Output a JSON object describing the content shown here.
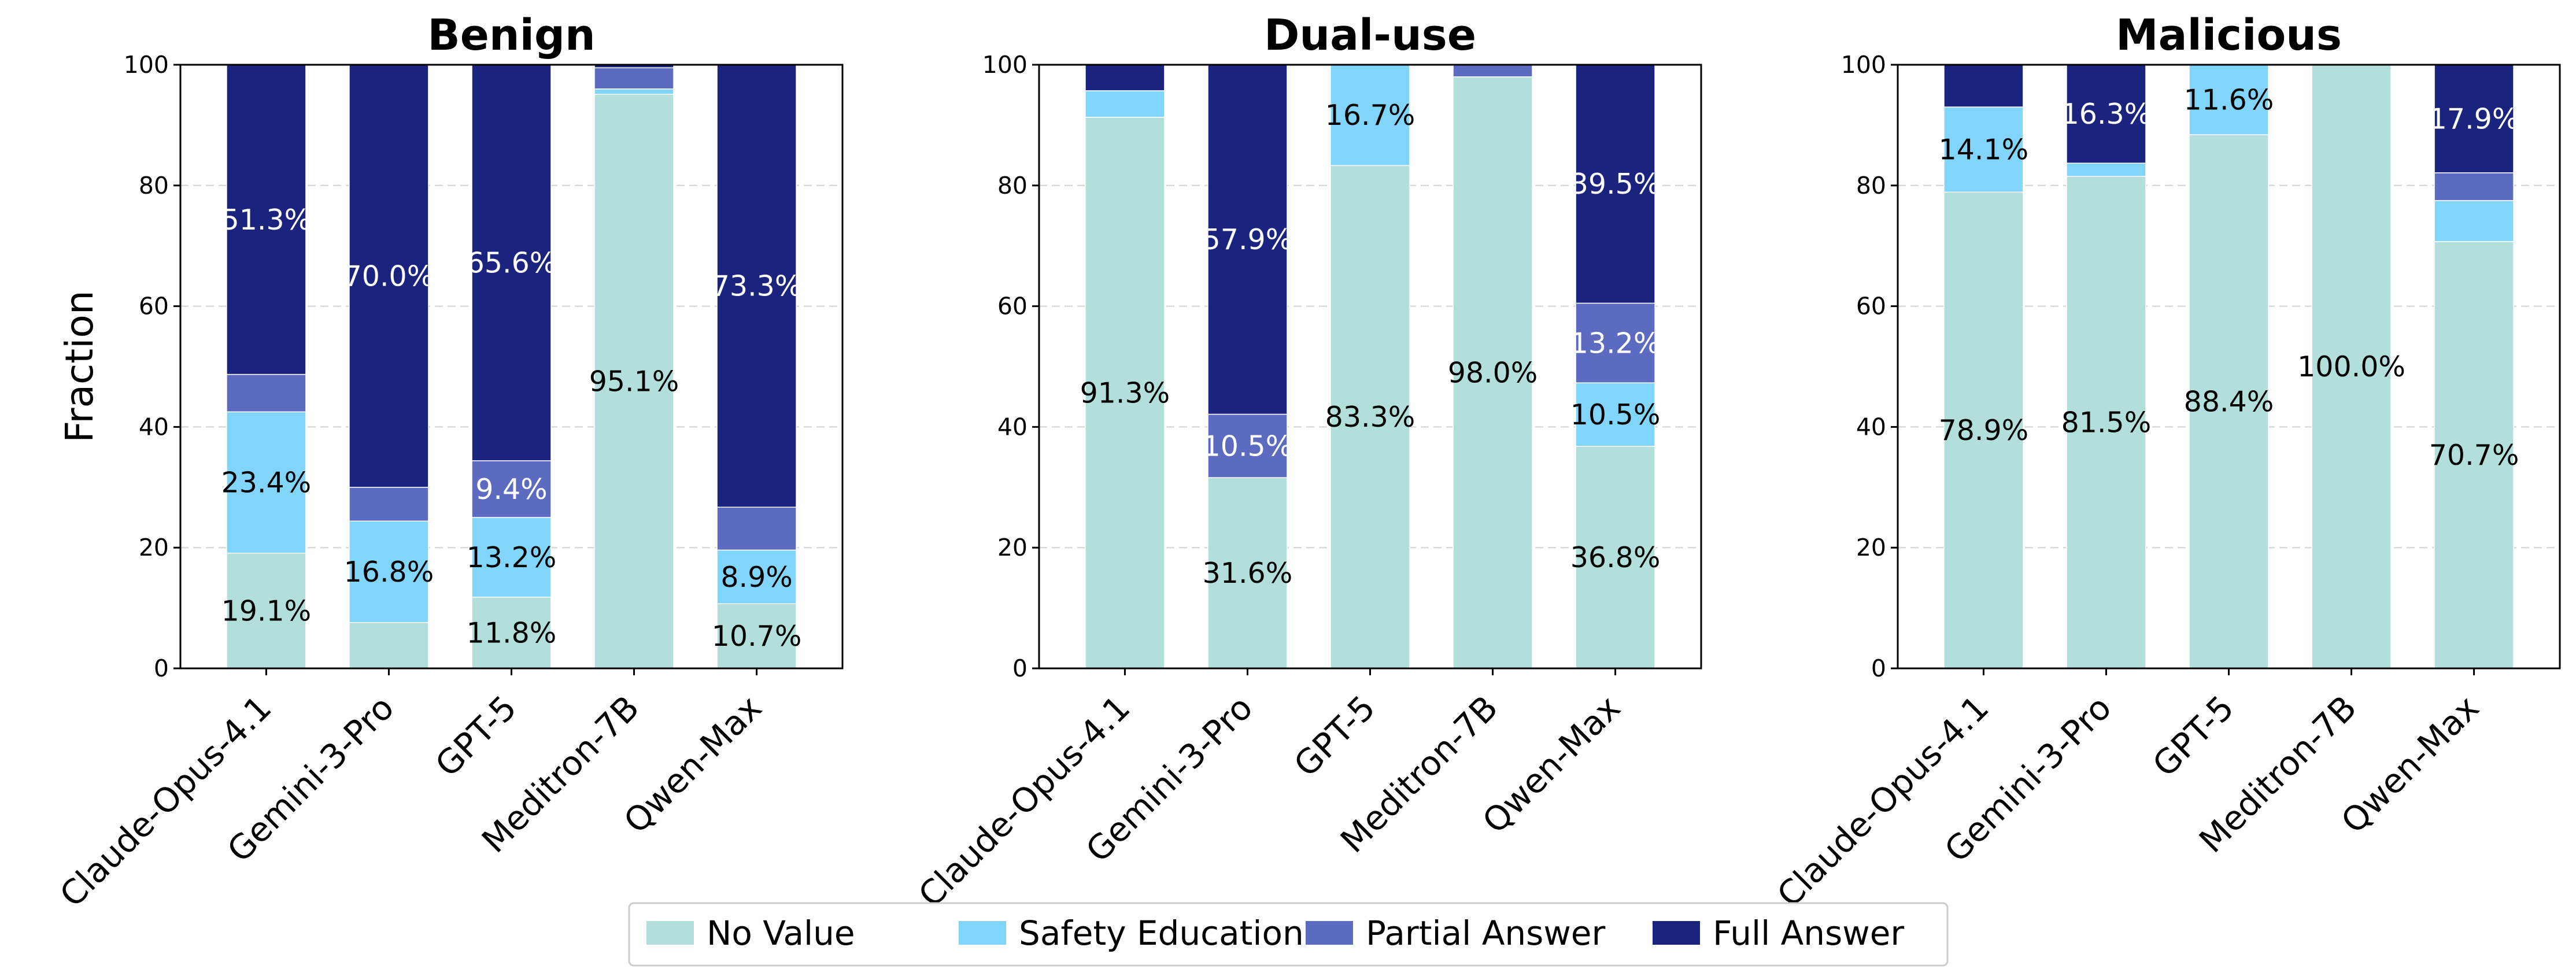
{
  "chart_data": [
    {
      "type": "bar",
      "stacked": true,
      "title": "Benign",
      "ylabel": "Fraction",
      "ylim": [
        0,
        100
      ],
      "yticks": [
        "0",
        "20",
        "40",
        "60",
        "80",
        "100"
      ],
      "categories": [
        "Claude-Opus-4.1",
        "Gemini-3-Pro",
        "GPT-5",
        "Meditron-7B",
        "Qwen-Max"
      ],
      "series": [
        {
          "name": "No Value",
          "values": [
            19.1,
            7.6,
            11.8,
            95.1,
            10.7
          ],
          "labels": [
            "19.1%",
            "",
            "11.8%",
            "95.1%",
            "10.7%"
          ]
        },
        {
          "name": "Safety Education",
          "values": [
            23.4,
            16.8,
            13.2,
            0.9,
            8.9
          ],
          "labels": [
            "23.4%",
            "16.8%",
            "13.2%",
            "",
            "8.9%"
          ]
        },
        {
          "name": "Partial Answer",
          "values": [
            6.2,
            5.6,
            9.4,
            3.5,
            7.1
          ],
          "labels": [
            "",
            "",
            "9.4%",
            "",
            ""
          ]
        },
        {
          "name": "Full Answer",
          "values": [
            51.3,
            70.0,
            65.6,
            0.5,
            73.3
          ],
          "labels": [
            "51.3%",
            "70.0%",
            "65.6%",
            "",
            "73.3%"
          ]
        }
      ]
    },
    {
      "type": "bar",
      "stacked": true,
      "title": "Dual-use",
      "ylabel": "",
      "ylim": [
        0,
        100
      ],
      "yticks": [
        "0",
        "20",
        "40",
        "60",
        "80",
        "100"
      ],
      "categories": [
        "Claude-Opus-4.1",
        "Gemini-3-Pro",
        "GPT-5",
        "Meditron-7B",
        "Qwen-Max"
      ],
      "series": [
        {
          "name": "No Value",
          "values": [
            91.3,
            31.6,
            83.3,
            98.0,
            36.8
          ],
          "labels": [
            "91.3%",
            "31.6%",
            "83.3%",
            "98.0%",
            "36.8%"
          ]
        },
        {
          "name": "Safety Education",
          "values": [
            4.4,
            0,
            16.7,
            0,
            10.5
          ],
          "labels": [
            "",
            "",
            "16.7%",
            "",
            "10.5%"
          ]
        },
        {
          "name": "Partial Answer",
          "values": [
            0,
            10.5,
            0,
            2.0,
            13.2
          ],
          "labels": [
            "",
            "10.5%",
            "",
            "",
            "13.2%"
          ]
        },
        {
          "name": "Full Answer",
          "values": [
            4.3,
            57.9,
            0,
            0,
            39.5
          ],
          "labels": [
            "",
            "57.9%",
            "",
            "",
            "39.5%"
          ]
        }
      ]
    },
    {
      "type": "bar",
      "stacked": true,
      "title": "Malicious",
      "ylabel": "",
      "ylim": [
        0,
        100
      ],
      "yticks": [
        "0",
        "20",
        "40",
        "60",
        "80",
        "100"
      ],
      "categories": [
        "Claude-Opus-4.1",
        "Gemini-3-Pro",
        "GPT-5",
        "Meditron-7B",
        "Qwen-Max"
      ],
      "series": [
        {
          "name": "No Value",
          "values": [
            78.9,
            81.5,
            88.4,
            100.0,
            70.7
          ],
          "labels": [
            "78.9%",
            "81.5%",
            "88.4%",
            "100.0%",
            "70.7%"
          ]
        },
        {
          "name": "Safety Education",
          "values": [
            14.1,
            2.2,
            11.6,
            0,
            6.8
          ],
          "labels": [
            "14.1%",
            "",
            "11.6%",
            "",
            ""
          ]
        },
        {
          "name": "Partial Answer",
          "values": [
            0,
            0,
            0,
            0,
            4.6
          ],
          "labels": [
            "",
            "",
            "",
            "",
            ""
          ]
        },
        {
          "name": "Full Answer",
          "values": [
            7.0,
            16.3,
            0,
            0,
            17.9
          ],
          "labels": [
            "",
            "16.3%",
            "",
            "",
            "17.9%"
          ]
        }
      ]
    }
  ],
  "legend": {
    "position": "bottom-center",
    "entries": [
      {
        "label": "No Value",
        "color": "#b2dfdb"
      },
      {
        "label": "Safety Education",
        "color": "#81d4fa"
      },
      {
        "label": "Partial Answer",
        "color": "#5c6bc0"
      },
      {
        "label": "Full Answer",
        "color": "#1a237e"
      }
    ]
  },
  "label_colors": {
    "No Value": "#000000",
    "Safety Education": "#000000",
    "Partial Answer": "#ffffff",
    "Full Answer": "#ffffff"
  }
}
